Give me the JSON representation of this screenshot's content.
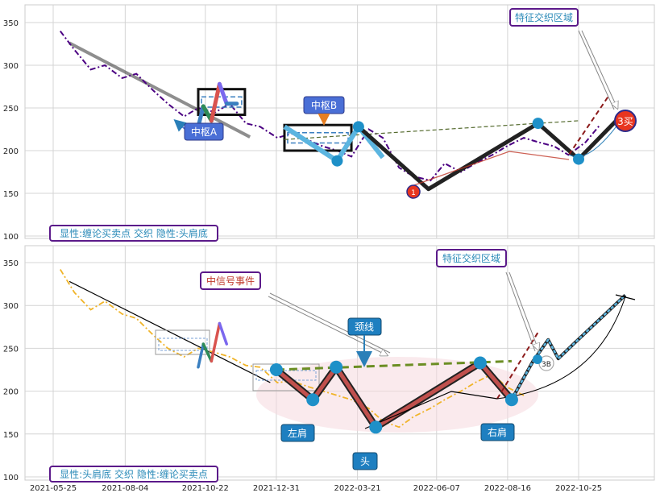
{
  "chart_data": [
    {
      "type": "line",
      "panel": "top",
      "ylim": [
        100,
        370
      ],
      "yticks": [
        "100",
        "150",
        "200",
        "250",
        "300",
        "350"
      ],
      "price_series": {
        "style": "dash-dot",
        "color": "#4b0082",
        "x": [
          "2021-06-01",
          "2021-06-15",
          "2021-07-01",
          "2021-07-15",
          "2021-08-01",
          "2021-08-15",
          "2021-09-01",
          "2021-09-15",
          "2021-10-01",
          "2021-10-15",
          "2021-11-01",
          "2021-11-15",
          "2021-12-01",
          "2021-12-15",
          "2022-01-01",
          "2022-01-15",
          "2022-02-01",
          "2022-02-15",
          "2022-03-01",
          "2022-03-15",
          "2022-04-01",
          "2022-04-15",
          "2022-05-01",
          "2022-05-15",
          "2022-06-01",
          "2022-06-15",
          "2022-07-01",
          "2022-07-15",
          "2022-08-01",
          "2022-08-15",
          "2022-09-01",
          "2022-09-15",
          "2022-10-01",
          "2022-10-15",
          "2022-11-01",
          "2022-11-15"
        ],
        "y": [
          340,
          318,
          295,
          300,
          285,
          290,
          270,
          255,
          240,
          250,
          245,
          255,
          232,
          228,
          215,
          220,
          212,
          205,
          200,
          193,
          225,
          215,
          180,
          170,
          165,
          185,
          175,
          185,
          195,
          205,
          215,
          210,
          205,
          195,
          210,
          230
        ]
      },
      "trend_line": {
        "x": [
          "2021-06-10",
          "2021-12-05"
        ],
        "y": [
          326,
          216
        ],
        "color": "#333333"
      },
      "strokes": [
        {
          "x": [
            "2021-10-15",
            "2021-10-20",
            "2021-10-28",
            "2021-11-05",
            "2021-11-12",
            "2021-11-22"
          ],
          "y": [
            228,
            252,
            235,
            278,
            255,
            255
          ],
          "colors": [
            "#3a7fc0",
            "#2e8b57",
            "#d9534f",
            "#7b68ee"
          ]
        },
        {
          "x": [
            "2022-01-08",
            "2022-03-01",
            "2022-03-22",
            "2022-04-15"
          ],
          "y": [
            228,
            188,
            228,
            192
          ],
          "color": "#5bb5e0"
        }
      ],
      "bi_lines": [
        {
          "x": [
            "2022-03-22",
            "2022-05-30",
            "2022-09-15",
            "2022-10-25",
            "2022-12-01"
          ],
          "y": [
            228,
            155,
            232,
            190,
            235
          ],
          "color": "#222222"
        }
      ],
      "boxes": [
        {
          "label_ref": "zhongshu_a",
          "x": [
            "2021-10-15",
            "2021-11-30"
          ],
          "y": [
            242,
            272
          ]
        },
        {
          "label_ref": "zhongshu_b",
          "x": [
            "2022-01-08",
            "2022-03-15"
          ],
          "y": [
            200,
            230
          ]
        }
      ],
      "neckline": {
        "x": [
          "2022-01-08",
          "2022-10-25"
        ],
        "y": [
          213,
          235
        ],
        "color": "#556b2f"
      },
      "callout_labels": {
        "zhongshu_a": "中枢A",
        "zhongshu_b": "中枢B",
        "feature_zone": "特征交织区域",
        "buy_point_1": "1",
        "buy_point_3": "3买"
      },
      "legend_text": "显性:缠论买卖点 交织 隐性:头肩底"
    },
    {
      "type": "line",
      "panel": "bottom",
      "ylim": [
        100,
        370
      ],
      "yticks": [
        "100",
        "150",
        "200",
        "250",
        "300",
        "350"
      ],
      "xticks": [
        "2021-05-25",
        "2021-08-04",
        "2021-10-22",
        "2021-12-31",
        "2022-03-21",
        "2022-06-07",
        "2022-08-16",
        "2022-10-25"
      ],
      "price_series": {
        "style": "dash-dot",
        "color": "#f0b429",
        "x": [
          "2021-06-01",
          "2021-06-15",
          "2021-07-01",
          "2021-07-15",
          "2021-08-01",
          "2021-08-15",
          "2021-09-01",
          "2021-09-15",
          "2021-10-01",
          "2021-10-15",
          "2021-11-01",
          "2021-11-15",
          "2021-12-01",
          "2021-12-15",
          "2022-01-01",
          "2022-01-15",
          "2022-02-01",
          "2022-02-15",
          "2022-03-01",
          "2022-03-15",
          "2022-04-01",
          "2022-04-15",
          "2022-05-01",
          "2022-05-15",
          "2022-06-01",
          "2022-06-15",
          "2022-07-01",
          "2022-07-15",
          "2022-08-01",
          "2022-08-15",
          "2022-09-01"
        ],
        "y": [
          342,
          315,
          295,
          305,
          290,
          285,
          265,
          250,
          240,
          250,
          245,
          240,
          230,
          228,
          210,
          212,
          205,
          200,
          195,
          190,
          180,
          165,
          158,
          170,
          180,
          190,
          200,
          210,
          220,
          205,
          195
        ]
      },
      "trend_line": {
        "x": [
          "2021-06-10",
          "2021-12-25"
        ],
        "y": [
          328,
          210
        ],
        "color": "#000000"
      },
      "strokes": [
        {
          "x": [
            "2021-10-15",
            "2021-10-20",
            "2021-10-28",
            "2021-11-05",
            "2021-11-12"
          ],
          "y": [
            228,
            255,
            235,
            279,
            255
          ],
          "colors": [
            "#3a7fc0",
            "#2e8b57",
            "#d9534f",
            "#7b68ee"
          ]
        }
      ],
      "hs_points": {
        "x": [
          "2021-12-31",
          "2022-02-05",
          "2022-02-28",
          "2022-04-08",
          "2022-07-20",
          "2022-08-20"
        ],
        "y": [
          225,
          190,
          228,
          158,
          233,
          190
        ]
      },
      "neckline": {
        "x": [
          "2021-12-31",
          "2022-08-20"
        ],
        "y": [
          225,
          235
        ],
        "color": "#6b8e23"
      },
      "breakout": {
        "x": [
          "2022-08-20",
          "2022-09-10",
          "2022-09-25",
          "2022-10-05",
          "2022-10-20",
          "2022-12-10"
        ],
        "y": [
          190,
          235,
          260,
          238,
          255,
          312
        ]
      },
      "callout_labels": {
        "mid_signal": "中信号事件",
        "neckline": "颈线",
        "feature_zone": "特征交织区域",
        "left_shoulder": "左肩",
        "head": "头",
        "right_shoulder": "右肩",
        "marker_3b": "3B"
      },
      "legend_text": "显性:头肩底 交织 隐性:缠论买卖点"
    }
  ]
}
